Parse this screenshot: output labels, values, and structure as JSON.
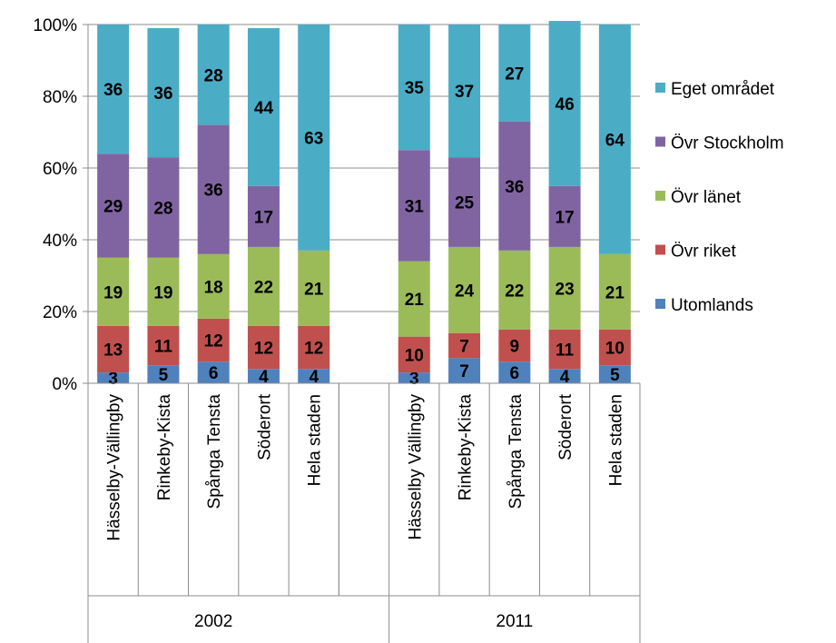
{
  "chart_data": {
    "type": "bar",
    "stacked": true,
    "percent": true,
    "grid": true,
    "legend_position": "right",
    "yticks": [
      "0%",
      "20%",
      "40%",
      "60%",
      "80%",
      "100%"
    ],
    "ylim": [
      0,
      100
    ],
    "groups": [
      {
        "label": "2002",
        "categories": [
          "Hässelby-Vällingby",
          "Rinkeby-Kista",
          "Spånga Tensta",
          "Söderort",
          "Hela staden"
        ]
      },
      {
        "label": "2011",
        "categories": [
          "Hässelby Vällingby",
          "Rinkeby-Kista",
          "Spånga Tensta",
          "Söderort",
          "Hela staden"
        ]
      }
    ],
    "series": [
      {
        "name": "Utomlands",
        "color": "#4f81bd",
        "values": [
          [
            3,
            5,
            6,
            4,
            4
          ],
          [
            3,
            7,
            6,
            4,
            5
          ]
        ]
      },
      {
        "name": "Övr riket",
        "color": "#c0504d",
        "values": [
          [
            13,
            11,
            12,
            12,
            12
          ],
          [
            10,
            7,
            9,
            11,
            10
          ]
        ]
      },
      {
        "name": "Övr länet",
        "color": "#9bbb59",
        "values": [
          [
            19,
            19,
            18,
            22,
            21
          ],
          [
            21,
            24,
            22,
            23,
            21
          ]
        ]
      },
      {
        "name": "Övr Stockholm",
        "color": "#8064a2",
        "values": [
          [
            29,
            28,
            36,
            17,
            null
          ],
          [
            31,
            25,
            36,
            17,
            null
          ]
        ]
      },
      {
        "name": "Eget området",
        "color": "#4bacc6",
        "values": [
          [
            36,
            36,
            28,
            44,
            63
          ],
          [
            35,
            37,
            27,
            46,
            64
          ]
        ]
      }
    ]
  }
}
